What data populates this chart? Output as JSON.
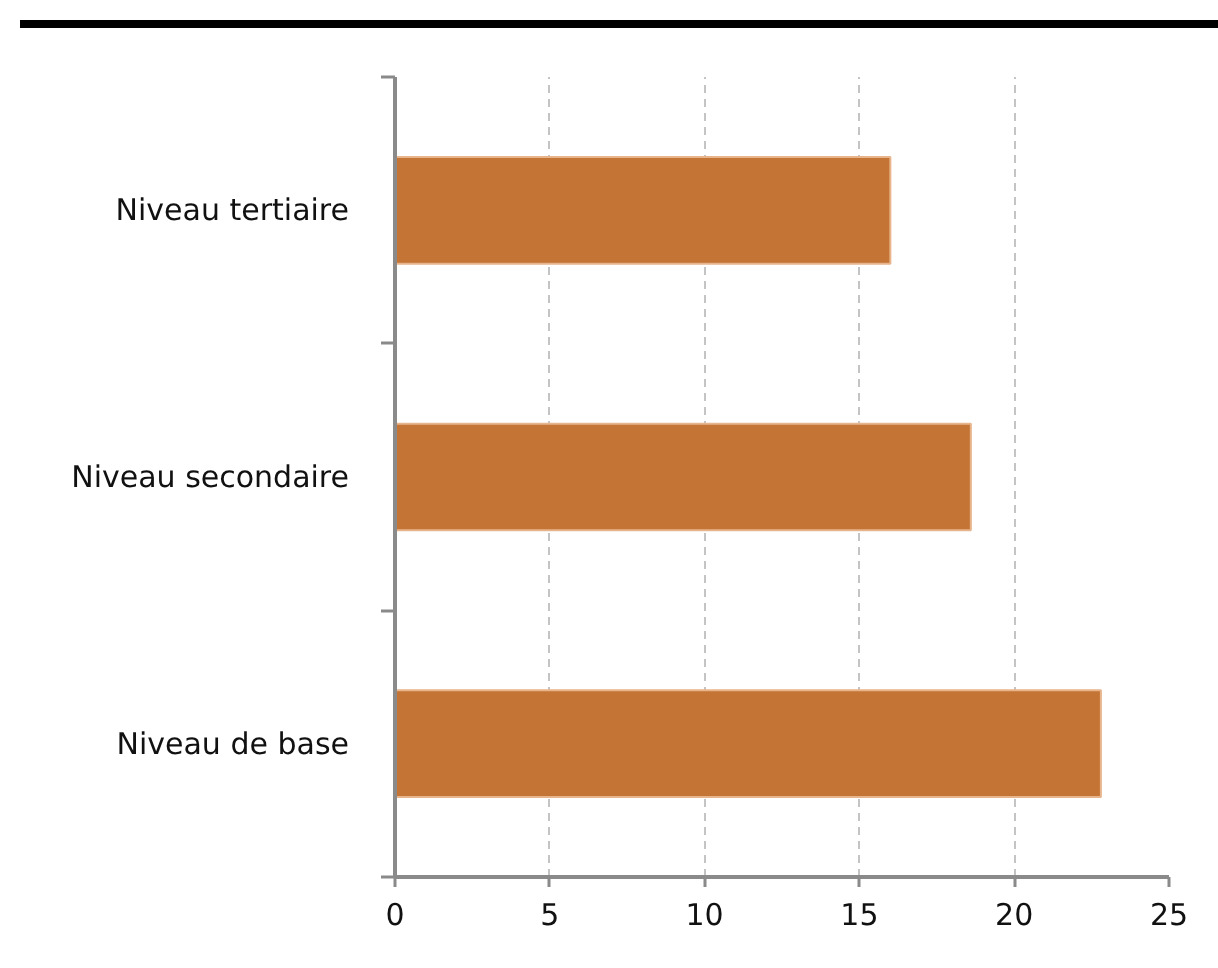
{
  "chart_data": {
    "type": "bar",
    "orientation": "horizontal",
    "categories": [
      "Niveau tertiaire",
      "Niveau secondaire",
      "Niveau de base"
    ],
    "values": [
      16.0,
      18.6,
      22.8
    ],
    "color": "#c47536",
    "xlim": [
      0,
      25
    ],
    "xticks": [
      0,
      5,
      10,
      15,
      20,
      25
    ],
    "grid": "x"
  }
}
